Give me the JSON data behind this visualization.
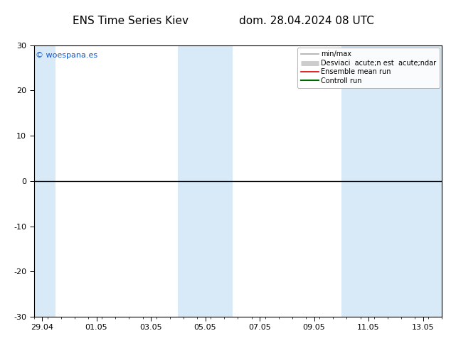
{
  "title_left": "ENS Time Series Kiev",
  "title_right": "dom. 28.04.2024 08 UTC",
  "watermark": "© woespana.es",
  "ylim": [
    -30,
    30
  ],
  "yticks": [
    -30,
    -20,
    -10,
    0,
    10,
    20,
    30
  ],
  "x_labels": [
    "29.04",
    "01.05",
    "03.05",
    "05.05",
    "07.05",
    "09.05",
    "11.05",
    "13.05"
  ],
  "x_tick_positions": [
    0,
    2,
    4,
    6,
    8,
    10,
    12,
    14
  ],
  "x_min": -0.3,
  "x_max": 14.7,
  "shaded_bands": [
    {
      "x_start": -0.3,
      "x_end": 0.5
    },
    {
      "x_start": 5.0,
      "x_end": 7.0
    },
    {
      "x_start": 11.0,
      "x_end": 14.7
    }
  ],
  "shade_color": "#d8eaf8",
  "bg_color": "#ffffff",
  "plot_bg_color": "#ffffff",
  "zero_line_color": "#000000",
  "zero_line_lw": 1.0,
  "title_fontsize": 11,
  "tick_fontsize": 8,
  "legend_fontsize": 7,
  "watermark_color": "#1155cc",
  "watermark_fontsize": 8,
  "legend_line_colors": {
    "minmax": "#aaaaaa",
    "std": "#cccccc",
    "ensemble": "#dd0000",
    "control": "#006600"
  }
}
